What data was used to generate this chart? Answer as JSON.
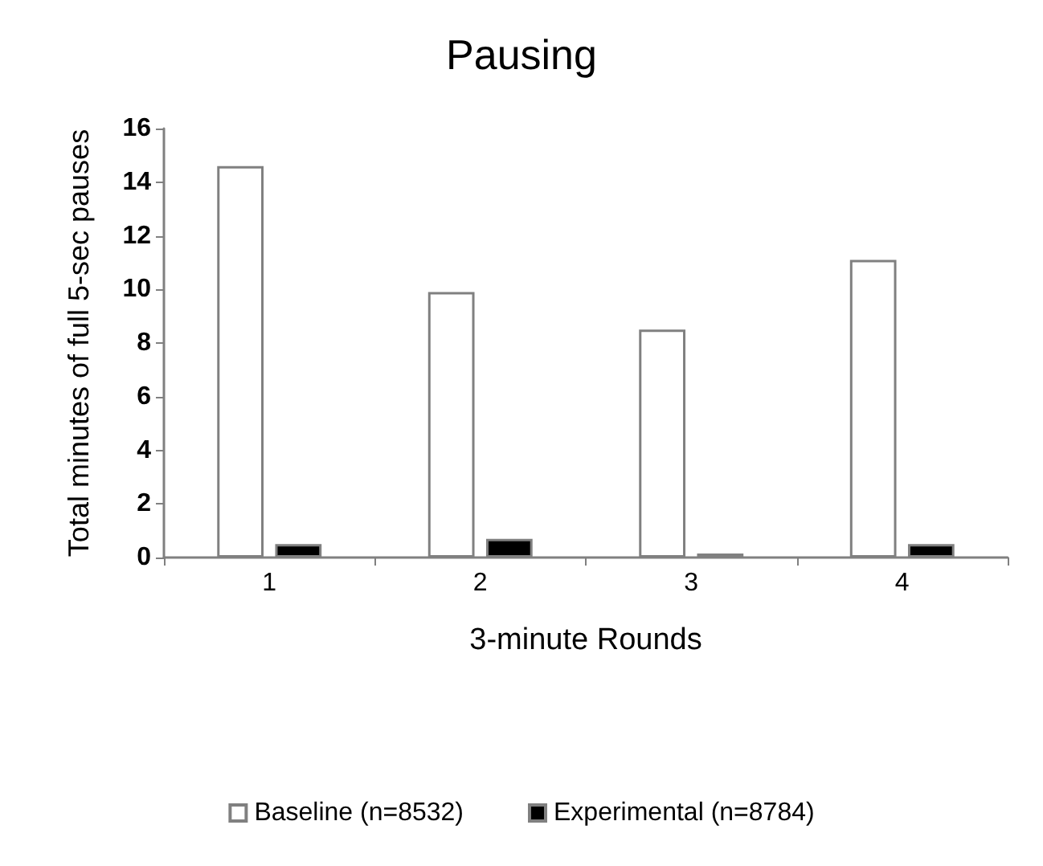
{
  "chart_data": {
    "type": "bar",
    "title": "Pausing",
    "xlabel": "3-minute Rounds",
    "ylabel": "Total minutes of full 5-sec pauses",
    "categories": [
      "1",
      "2",
      "3",
      "4"
    ],
    "series": [
      {
        "name": "Baseline (n=8532)",
        "color": "#ffffff",
        "values": [
          14.6,
          9.9,
          8.5,
          11.1
        ]
      },
      {
        "name": "Experimental (n=8784)",
        "color": "#000000",
        "values": [
          0.5,
          0.7,
          0.15,
          0.5
        ]
      }
    ],
    "ylim": [
      0,
      16
    ],
    "yticks": [
      0,
      2,
      4,
      6,
      8,
      10,
      12,
      14,
      16
    ],
    "grid": false,
    "legend": "bottom"
  }
}
